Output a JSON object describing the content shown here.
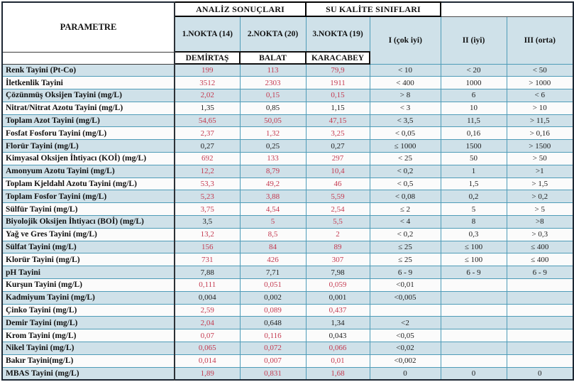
{
  "header": {
    "param_label": "PARAMETRE",
    "analiz_label": "ANALİZ SONUÇLARI",
    "sukalite_label": "SU KALİTE SINIFLARI",
    "station_cols": [
      "1.NOKTA (14)",
      "2.NOKTA (20)",
      "3.NOKTA (19)"
    ],
    "station_names": [
      "DEMİRTAŞ",
      "BALAT",
      "KARACABEY"
    ],
    "class_cols": [
      "I (çok iyi)",
      "II (iyi)",
      "III (orta)"
    ]
  },
  "colors": {
    "row_blue": "#cfe1e9",
    "row_white": "#fbfbfb",
    "grid_teal": "#4f9cb8",
    "value_red": "#c43a50",
    "text_dark": "#1d1d1d"
  },
  "table": {
    "rows": [
      {
        "param": "Renk Tayini (Pt-Co)",
        "values": [
          "199",
          "113",
          "79,9"
        ],
        "red": [
          true,
          true,
          true
        ],
        "classes": [
          "< 10",
          "< 20",
          "< 50"
        ]
      },
      {
        "param": "İletkenlik Tayini",
        "values": [
          "3512",
          "2303",
          "1911"
        ],
        "red": [
          true,
          true,
          true
        ],
        "classes": [
          "< 400",
          "1000",
          "> 1000"
        ]
      },
      {
        "param": "Çözünmüş Oksijen Tayini (mg/L)",
        "values": [
          "2,02",
          "0,15",
          "0,15"
        ],
        "red": [
          true,
          true,
          true
        ],
        "classes": [
          "> 8",
          "6",
          "< 6"
        ]
      },
      {
        "param": "Nitrat/Nitrat Azotu Tayini (mg/L)",
        "values": [
          "1,35",
          "0,85",
          "1,15"
        ],
        "red": [
          false,
          false,
          false
        ],
        "classes": [
          "< 3",
          "10",
          "> 10"
        ]
      },
      {
        "param": "Toplam Azot Tayini (mg/L)",
        "values": [
          "54,65",
          "50,05",
          "47,15"
        ],
        "red": [
          true,
          true,
          true
        ],
        "classes": [
          "< 3,5",
          "11,5",
          "> 11,5"
        ]
      },
      {
        "param": "Fosfat Fosforu Tayini (mg/L)",
        "values": [
          "2,37",
          "1,32",
          "3,25"
        ],
        "red": [
          true,
          true,
          true
        ],
        "classes": [
          "< 0,05",
          "0,16",
          "> 0,16"
        ]
      },
      {
        "param": "Florür Tayini (mg/L)",
        "values": [
          "0,27",
          "0,25",
          "0,27"
        ],
        "red": [
          false,
          false,
          false
        ],
        "classes": [
          "≤ 1000",
          "1500",
          "> 1500"
        ]
      },
      {
        "param": "Kimyasal Oksijen İhtiyacı (KOİ) (mg/L)",
        "values": [
          "692",
          "133",
          "297"
        ],
        "red": [
          true,
          true,
          true
        ],
        "classes": [
          "< 25",
          "50",
          "> 50"
        ]
      },
      {
        "param": "Amonyum Azotu Tayini (mg/L)",
        "values": [
          "12,2",
          "8,79",
          "10,4"
        ],
        "red": [
          true,
          true,
          true
        ],
        "classes": [
          "< 0,2",
          "1",
          ">1"
        ]
      },
      {
        "param": "Toplam Kjeldahl Azotu Tayini (mg/L)",
        "values": [
          "53,3",
          "49,2",
          "46"
        ],
        "red": [
          true,
          true,
          true
        ],
        "classes": [
          "< 0,5",
          "1,5",
          "> 1,5"
        ]
      },
      {
        "param": "Toplam Fosfor Tayini (mg/L)",
        "values": [
          "5,23",
          "3,88",
          "5,59"
        ],
        "red": [
          true,
          true,
          true
        ],
        "classes": [
          "< 0,08",
          "0,2",
          "> 0,2"
        ]
      },
      {
        "param": "Sülfür Tayini (mg/L)",
        "values": [
          "3,75",
          "4,54",
          "2,54"
        ],
        "red": [
          true,
          true,
          true
        ],
        "classes": [
          "≤ 2",
          "5",
          "> 5"
        ]
      },
      {
        "param": "Biyolojik Oksijen İhtiyacı (BOİ) (mg/L)",
        "values": [
          "3,5",
          "5",
          "5,5"
        ],
        "red": [
          false,
          true,
          true
        ],
        "classes": [
          "< 4",
          "8",
          ">8"
        ]
      },
      {
        "param": "Yağ ve Gres Tayini (mg/L)",
        "values": [
          "13,2",
          "8,5",
          "2"
        ],
        "red": [
          true,
          true,
          true
        ],
        "classes": [
          "< 0,2",
          "0,3",
          "> 0,3"
        ]
      },
      {
        "param": "Sülfat Tayini (mg/L)",
        "values": [
          "156",
          "84",
          "89"
        ],
        "red": [
          true,
          true,
          true
        ],
        "classes": [
          "≤ 25",
          "≤ 100",
          "≤ 400"
        ]
      },
      {
        "param": "Klorür Tayini (mg/L)",
        "values": [
          "731",
          "426",
          "307"
        ],
        "red": [
          true,
          true,
          true
        ],
        "classes": [
          "≤ 25",
          "≤ 100",
          "≤ 400"
        ]
      },
      {
        "param": "pH Tayini",
        "values": [
          "7,88",
          "7,71",
          "7,98"
        ],
        "red": [
          false,
          false,
          false
        ],
        "classes": [
          "6 - 9",
          "6 - 9",
          "6 - 9"
        ]
      },
      {
        "param": "Kurşun Tayini (mg/L)",
        "values": [
          "0,111",
          "0,051",
          "0,059"
        ],
        "red": [
          true,
          true,
          true
        ],
        "classes": [
          "<0,01",
          "",
          ""
        ]
      },
      {
        "param": "Kadmiyum Tayini (mg/L)",
        "values": [
          "0,004",
          "0,002",
          "0,001"
        ],
        "red": [
          false,
          false,
          false
        ],
        "classes": [
          "<0,005",
          "",
          ""
        ]
      },
      {
        "param": "Çinko Tayini (mg/L)",
        "values": [
          "2,59",
          "0,089",
          "0,437"
        ],
        "red": [
          true,
          true,
          true
        ],
        "classes": [
          "",
          "",
          ""
        ]
      },
      {
        "param": "Demir Tayini (mg/L)",
        "values": [
          "2,04",
          "0,648",
          "1,34"
        ],
        "red": [
          true,
          false,
          false
        ],
        "classes": [
          "<2",
          "",
          ""
        ]
      },
      {
        "param": "Krom Tayini (mg/L)",
        "values": [
          "0,07",
          "0,116",
          "0,043"
        ],
        "red": [
          true,
          true,
          false
        ],
        "classes": [
          "<0,05",
          "",
          ""
        ]
      },
      {
        "param": "Nikel Tayini (mg/L)",
        "values": [
          "0,065",
          "0,072",
          "0,066"
        ],
        "red": [
          true,
          true,
          true
        ],
        "classes": [
          "<0,02",
          "",
          ""
        ]
      },
      {
        "param": "Bakır Tayini(mg/L)",
        "values": [
          "0,014",
          "0,007",
          "0,01"
        ],
        "red": [
          true,
          true,
          true
        ],
        "classes": [
          "<0,002",
          "",
          ""
        ]
      },
      {
        "param": "MBAS Tayini (mg/L)",
        "values": [
          "1,89",
          "0,831",
          "1,68"
        ],
        "red": [
          true,
          true,
          true
        ],
        "classes": [
          "0",
          "0",
          "0"
        ]
      }
    ]
  }
}
